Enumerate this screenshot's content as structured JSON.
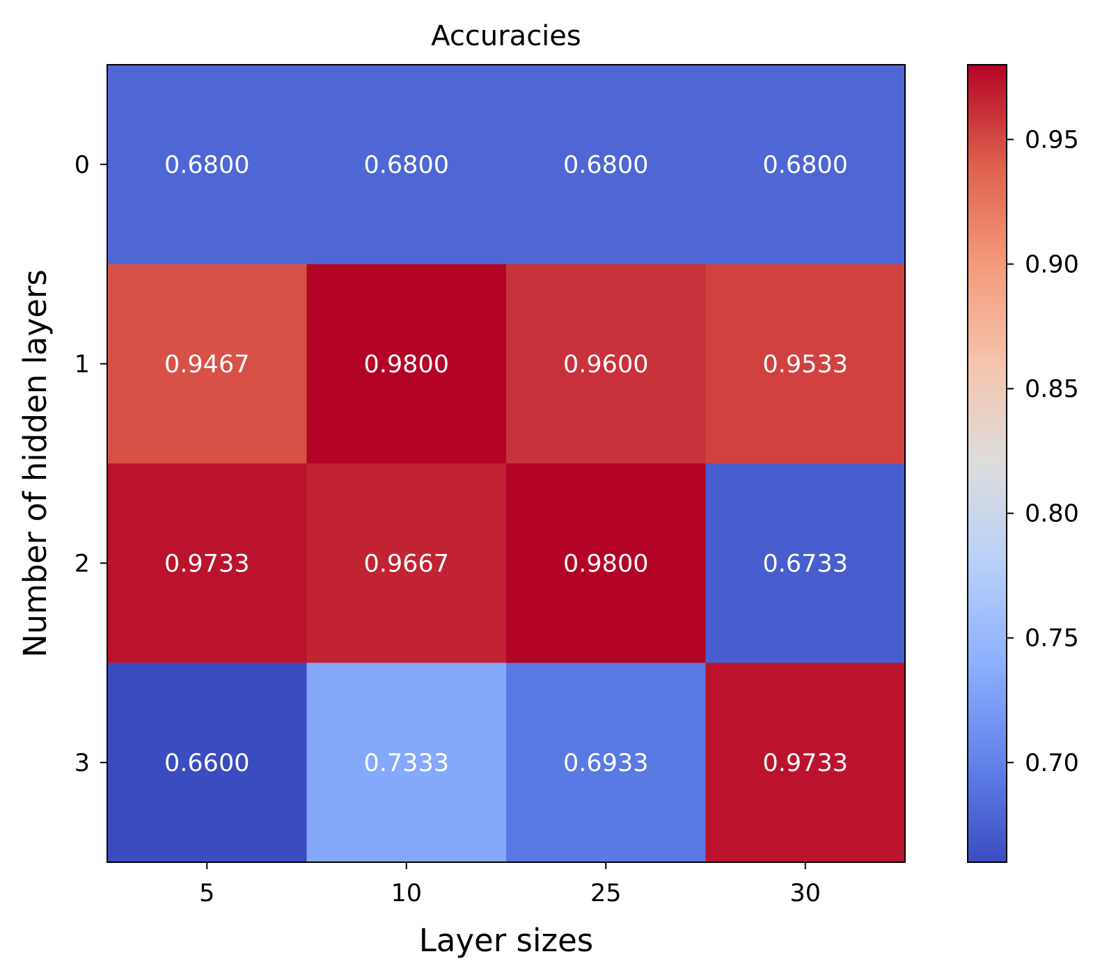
{
  "chart_data": {
    "type": "heatmap",
    "title": "Accuracies",
    "xlabel": "Layer sizes",
    "ylabel": "Number of hidden layers",
    "x_categories": [
      "5",
      "10",
      "25",
      "30"
    ],
    "y_categories": [
      "0",
      "1",
      "2",
      "3"
    ],
    "values": [
      [
        0.68,
        0.68,
        0.68,
        0.68
      ],
      [
        0.9467,
        0.98,
        0.96,
        0.9533
      ],
      [
        0.9733,
        0.9667,
        0.98,
        0.6733
      ],
      [
        0.66,
        0.7333,
        0.6933,
        0.9733
      ]
    ],
    "value_labels": [
      [
        "0.6800",
        "0.6800",
        "0.6800",
        "0.6800"
      ],
      [
        "0.9467",
        "0.9800",
        "0.9600",
        "0.9533"
      ],
      [
        "0.9733",
        "0.9667",
        "0.9800",
        "0.6733"
      ],
      [
        "0.6600",
        "0.7333",
        "0.6933",
        "0.9733"
      ]
    ],
    "colormap": "coolwarm",
    "vmin": 0.66,
    "vmax": 0.98,
    "colorbar_ticks": [
      0.7,
      0.75,
      0.8,
      0.85,
      0.9,
      0.95
    ],
    "colorbar_tick_labels": [
      "0.70",
      "0.75",
      "0.80",
      "0.85",
      "0.90",
      "0.95"
    ],
    "annotation_color": "#ffffff",
    "grid": false
  }
}
